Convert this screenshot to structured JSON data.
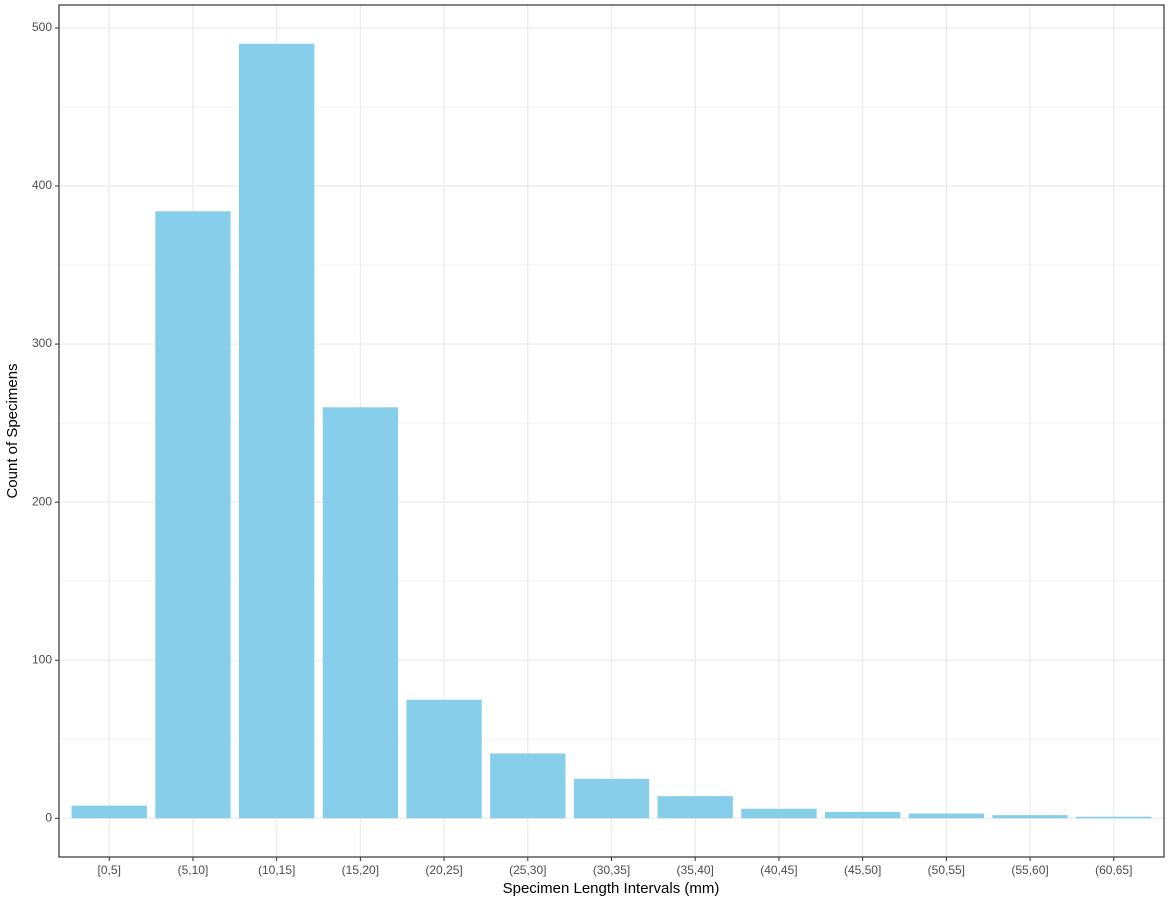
{
  "chart_data": {
    "type": "bar",
    "x_label": "Specimen Length Intervals (mm)",
    "y_label": "Count of Specimens",
    "categories": [
      "[0,5]",
      "(5,10]",
      "(10,15]",
      "(15,20]",
      "(20,25]",
      "(25,30]",
      "(30,35]",
      "(35,40]",
      "(40,45]",
      "(45,50]",
      "(50,55]",
      "(55,60]",
      "(60,65]"
    ],
    "values": [
      8,
      384,
      490,
      260,
      75,
      41,
      25,
      14,
      6,
      4,
      3,
      2,
      1
    ],
    "color": "#87ceeb",
    "ylim": [
      -24.5,
      514.5
    ],
    "yticks": [
      0,
      100,
      200,
      300,
      400,
      500
    ],
    "minor_yticks": [
      50,
      150,
      250,
      350,
      450
    ],
    "grid": true
  }
}
